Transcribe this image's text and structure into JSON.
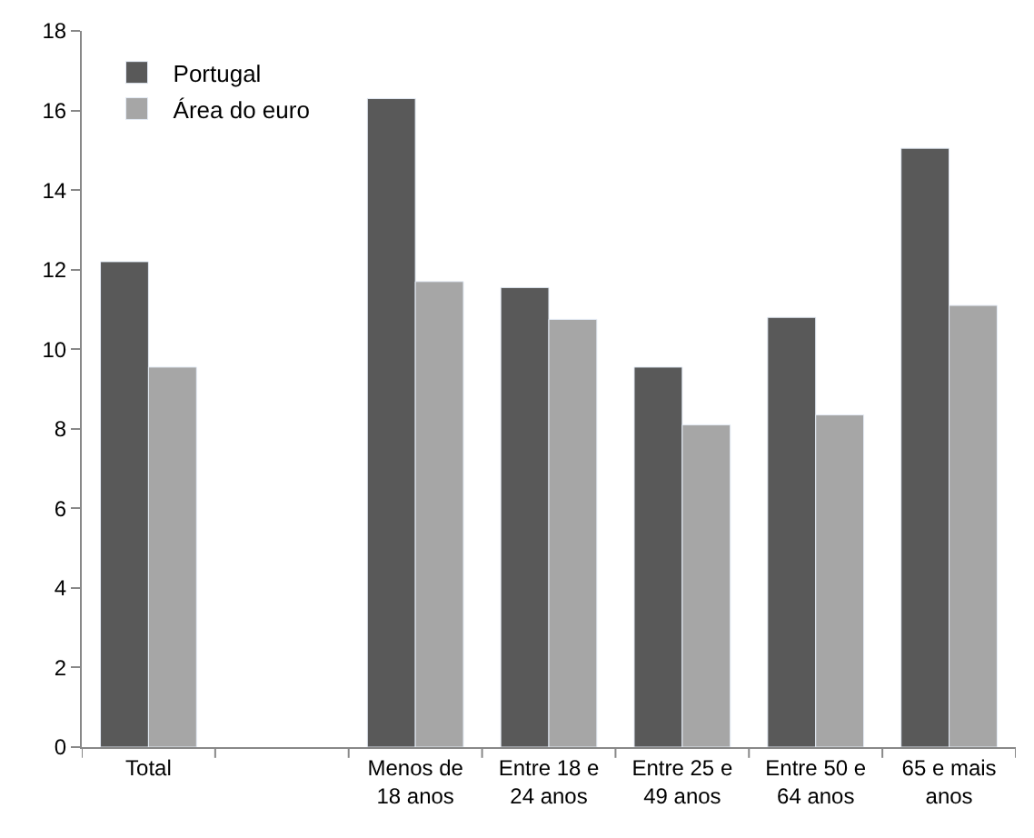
{
  "chart_data": {
    "type": "bar",
    "categories": [
      "Total",
      null,
      "Menos de 18 anos",
      "Entre 18 e 24 anos",
      "Entre 25 e 49 anos",
      "Entre 50 e 64 anos",
      "65 e mais anos"
    ],
    "series": [
      {
        "name": "Portugal",
        "color": "#595959",
        "values": [
          12.2,
          null,
          16.3,
          11.55,
          9.55,
          10.8,
          15.05
        ]
      },
      {
        "name": "Área do euro",
        "color": "#a6a6a6",
        "values": [
          9.55,
          null,
          11.7,
          10.75,
          8.1,
          8.35,
          11.1
        ]
      }
    ],
    "ylim": [
      0,
      18
    ],
    "yticks": [
      0,
      2,
      4,
      6,
      8,
      10,
      12,
      14,
      16,
      18
    ],
    "legend": "top left"
  }
}
